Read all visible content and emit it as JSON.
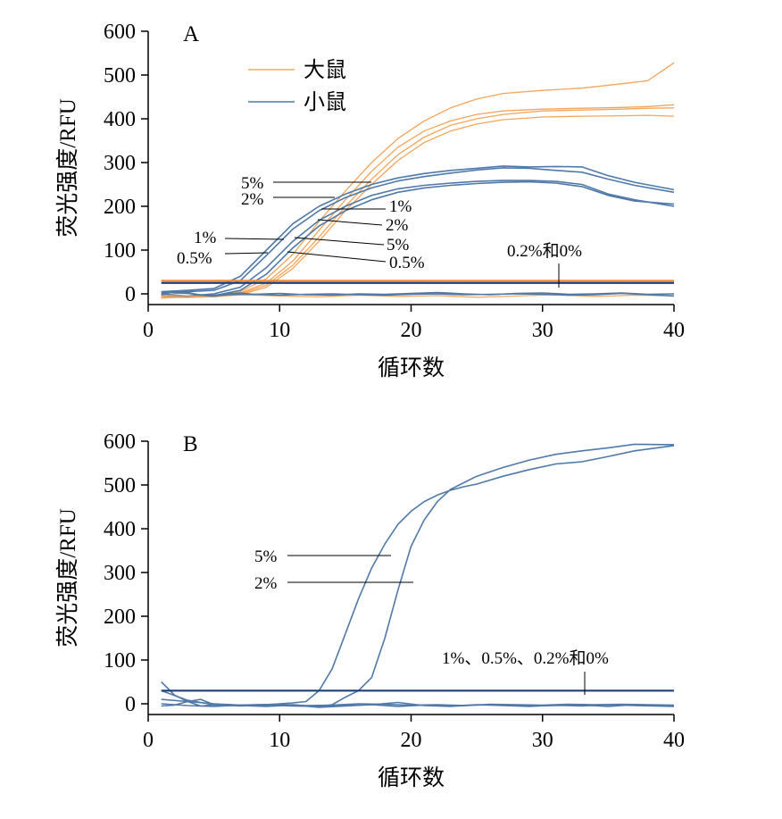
{
  "colors": {
    "rat": "#f4a55a",
    "mouse": "#4f79a8",
    "threshold_rat": "#ee8a3a",
    "threshold_mouse": "#1f3f7a",
    "axis": "#000000"
  },
  "chart_data": [
    {
      "type": "line",
      "panel_label": "A",
      "xlabel": "循环数",
      "ylabel": "荧光强度/RFU",
      "xlim": [
        0,
        40
      ],
      "ylim": [
        0,
        600
      ],
      "xticks": [
        0,
        10,
        20,
        30,
        40
      ],
      "yticks": [
        0,
        100,
        200,
        300,
        400,
        500,
        600
      ],
      "grid": false,
      "legend": {
        "placement": "top-center",
        "entries": [
          {
            "label": "大鼠",
            "color": "#f4a55a"
          },
          {
            "label": "小鼠",
            "color": "#4f79a8"
          }
        ]
      },
      "thresholds": [
        {
          "y": 30,
          "color": "#ee8a3a"
        },
        {
          "y": 25,
          "color": "#1f3f7a"
        }
      ],
      "series": [
        {
          "group": "rat",
          "color": "#f4a55a",
          "x": [
            1,
            3,
            5,
            7,
            9,
            11,
            13,
            15,
            17,
            19,
            21,
            23,
            25,
            27,
            30,
            33,
            36,
            38,
            40
          ],
          "y": [
            -8,
            -5,
            -6,
            5,
            35,
            90,
            165,
            235,
            300,
            355,
            395,
            425,
            445,
            458,
            465,
            470,
            480,
            487,
            528
          ]
        },
        {
          "group": "rat",
          "color": "#f4a55a",
          "x": [
            1,
            3,
            5,
            7,
            9,
            11,
            13,
            15,
            17,
            19,
            21,
            23,
            25,
            27,
            30,
            33,
            36,
            38,
            40
          ],
          "y": [
            -6,
            -4,
            -5,
            2,
            25,
            75,
            145,
            215,
            280,
            335,
            372,
            395,
            410,
            418,
            422,
            424,
            426,
            428,
            432
          ]
        },
        {
          "group": "rat",
          "color": "#f4a55a",
          "x": [
            1,
            3,
            5,
            7,
            9,
            11,
            13,
            15,
            17,
            19,
            21,
            23,
            25,
            27,
            30,
            33,
            36,
            38,
            40
          ],
          "y": [
            -10,
            -7,
            -6,
            0,
            20,
            65,
            130,
            200,
            262,
            318,
            358,
            385,
            400,
            410,
            418,
            420,
            422,
            424,
            425
          ]
        },
        {
          "group": "rat",
          "color": "#f4a55a",
          "x": [
            1,
            3,
            5,
            7,
            9,
            11,
            13,
            15,
            17,
            19,
            21,
            23,
            25,
            27,
            30,
            33,
            36,
            38,
            40
          ],
          "y": [
            -9,
            -8,
            -7,
            -2,
            15,
            58,
            120,
            190,
            250,
            305,
            346,
            372,
            388,
            398,
            404,
            406,
            407,
            408,
            406
          ]
        },
        {
          "group": "mouse",
          "color": "#4f79a8",
          "x": [
            1,
            3,
            5,
            7,
            9,
            11,
            13,
            15,
            17,
            19,
            21,
            23,
            25,
            27,
            29,
            31,
            33,
            35,
            37,
            40
          ],
          "y": [
            5,
            8,
            12,
            40,
            100,
            160,
            200,
            228,
            250,
            265,
            275,
            282,
            287,
            292,
            290,
            291,
            290,
            270,
            255,
            238
          ]
        },
        {
          "group": "mouse",
          "color": "#4f79a8",
          "x": [
            1,
            3,
            5,
            7,
            9,
            11,
            13,
            15,
            17,
            19,
            21,
            23,
            25,
            27,
            29,
            31,
            33,
            35,
            37,
            40
          ],
          "y": [
            2,
            5,
            8,
            30,
            88,
            148,
            190,
            220,
            242,
            258,
            268,
            276,
            283,
            288,
            287,
            282,
            278,
            262,
            248,
            232
          ]
        },
        {
          "group": "mouse",
          "color": "#4f79a8",
          "x": [
            1,
            3,
            5,
            7,
            9,
            11,
            13,
            15,
            17,
            19,
            21,
            23,
            25,
            27,
            29,
            31,
            33,
            35,
            37,
            40
          ],
          "y": [
            0,
            -5,
            0,
            15,
            60,
            120,
            168,
            200,
            225,
            240,
            248,
            253,
            257,
            259,
            259,
            257,
            250,
            228,
            215,
            200
          ]
        },
        {
          "group": "mouse",
          "color": "#4f79a8",
          "x": [
            1,
            3,
            5,
            7,
            9,
            11,
            13,
            15,
            17,
            19,
            21,
            23,
            25,
            27,
            29,
            31,
            33,
            35,
            37,
            40
          ],
          "y": [
            -3,
            -6,
            -4,
            8,
            45,
            105,
            155,
            190,
            215,
            232,
            242,
            248,
            252,
            255,
            256,
            253,
            245,
            225,
            212,
            205
          ]
        },
        {
          "group": "rat",
          "color": "#f4a55a",
          "x": [
            1,
            4,
            7,
            10,
            13,
            16,
            19,
            22,
            25,
            28,
            31,
            34,
            37,
            40
          ],
          "y": [
            -3,
            -6,
            -2,
            -5,
            -7,
            -3,
            -6,
            -4,
            -8,
            -5,
            -2,
            -6,
            -3,
            -4
          ]
        },
        {
          "group": "mouse",
          "color": "#4f79a8",
          "x": [
            1,
            2,
            3,
            4,
            5,
            6,
            7,
            8,
            10,
            12,
            14,
            16,
            18,
            20,
            22,
            24,
            26,
            28,
            30,
            32,
            34,
            36,
            38,
            40
          ],
          "y": [
            4,
            2,
            1,
            -2,
            -3,
            0,
            2,
            -1,
            1,
            -2,
            -3,
            0,
            -1,
            1,
            3,
            0,
            -2,
            1,
            2,
            -1,
            0,
            2,
            -1,
            0
          ]
        },
        {
          "group": "mouse",
          "color": "#4f79a8",
          "x": [
            1,
            2,
            3,
            4,
            5,
            6,
            8,
            10,
            12,
            14,
            16,
            18,
            20,
            22,
            24,
            26,
            28,
            30,
            32,
            34,
            36,
            38,
            40
          ],
          "y": [
            -2,
            5,
            3,
            -3,
            -5,
            -2,
            -1,
            -3,
            -1,
            0,
            -2,
            -3,
            -1,
            0,
            -2,
            -1,
            0,
            -1,
            -3,
            -2,
            1,
            -2,
            -5
          ]
        }
      ],
      "annotations": [
        {
          "text": "5%"
        },
        {
          "text": "2%"
        },
        {
          "text": "1%"
        },
        {
          "text": "0.5%"
        },
        {
          "text": "1%"
        },
        {
          "text": "2%"
        },
        {
          "text": "5%"
        },
        {
          "text": "0.5%"
        },
        {
          "text": "0.2%和0%"
        }
      ]
    },
    {
      "type": "line",
      "panel_label": "B",
      "xlabel": "循环数",
      "ylabel": "荧光强度/RFU",
      "xlim": [
        0,
        40
      ],
      "ylim": [
        0,
        600
      ],
      "xticks": [
        0,
        10,
        20,
        30,
        40
      ],
      "yticks": [
        0,
        100,
        200,
        300,
        400,
        500,
        600
      ],
      "grid": false,
      "thresholds": [
        {
          "y": 30,
          "color": "#1f3f7a"
        }
      ],
      "series": [
        {
          "group": "mouse",
          "color": "#4f79a8",
          "x": [
            1,
            3,
            5,
            7,
            9,
            10,
            11,
            12,
            13,
            14,
            15,
            16,
            17,
            18,
            19,
            20,
            21,
            22,
            23,
            24,
            25,
            27,
            29,
            31,
            33,
            35,
            37,
            40
          ],
          "y": [
            10,
            5,
            0,
            -3,
            -2,
            0,
            2,
            5,
            30,
            80,
            160,
            240,
            310,
            365,
            410,
            440,
            462,
            477,
            488,
            496,
            502,
            520,
            535,
            548,
            553,
            565,
            578,
            590
          ]
        },
        {
          "group": "mouse",
          "color": "#4f79a8",
          "x": [
            1,
            3,
            5,
            7,
            9,
            11,
            13,
            14,
            15,
            16,
            17,
            18,
            19,
            20,
            21,
            22,
            23,
            24,
            25,
            27,
            29,
            31,
            33,
            35,
            37,
            40
          ],
          "y": [
            30,
            8,
            -2,
            -5,
            -3,
            -5,
            -6,
            -2,
            15,
            30,
            60,
            150,
            260,
            360,
            420,
            462,
            490,
            505,
            520,
            540,
            557,
            570,
            578,
            585,
            593,
            592
          ]
        },
        {
          "group": "mouse",
          "color": "#4f79a8",
          "x": [
            1,
            2,
            3,
            4,
            5,
            6,
            8,
            10,
            12,
            14,
            16,
            18,
            20,
            22,
            24,
            26,
            28,
            30,
            32,
            34,
            36,
            38,
            40
          ],
          "y": [
            50,
            20,
            5,
            -5,
            -2,
            -4,
            -2,
            -1,
            -4,
            -3,
            0,
            -1,
            -3,
            -2,
            -4,
            -1,
            -2,
            -3,
            -1,
            -2,
            -1,
            -2,
            -3
          ]
        },
        {
          "group": "mouse",
          "color": "#4f79a8",
          "x": [
            1,
            2,
            3,
            4,
            5,
            7,
            9,
            11,
            13,
            15,
            17,
            19,
            21,
            23,
            25,
            27,
            29,
            31,
            33,
            35,
            37,
            40
          ],
          "y": [
            -5,
            -3,
            5,
            10,
            -2,
            -4,
            -6,
            -3,
            -8,
            -5,
            -2,
            3,
            -4,
            -6,
            -3,
            -2,
            -5,
            -4,
            -3,
            -6,
            -2,
            -4
          ]
        },
        {
          "group": "mouse",
          "color": "#4f79a8",
          "x": [
            1,
            3,
            5,
            7,
            9,
            11,
            13,
            15,
            17,
            19,
            21,
            23,
            25,
            27,
            29,
            31,
            33,
            35,
            37,
            40
          ],
          "y": [
            0,
            -4,
            -6,
            -3,
            -5,
            -2,
            -7,
            -4,
            -2,
            -6,
            -3,
            -5,
            -2,
            -4,
            -6,
            -3,
            -5,
            -2,
            -4,
            -6
          ]
        }
      ],
      "annotations": [
        {
          "text": "5%"
        },
        {
          "text": "2%"
        },
        {
          "text": "1%、0.5%、0.2%和0%"
        }
      ]
    }
  ]
}
